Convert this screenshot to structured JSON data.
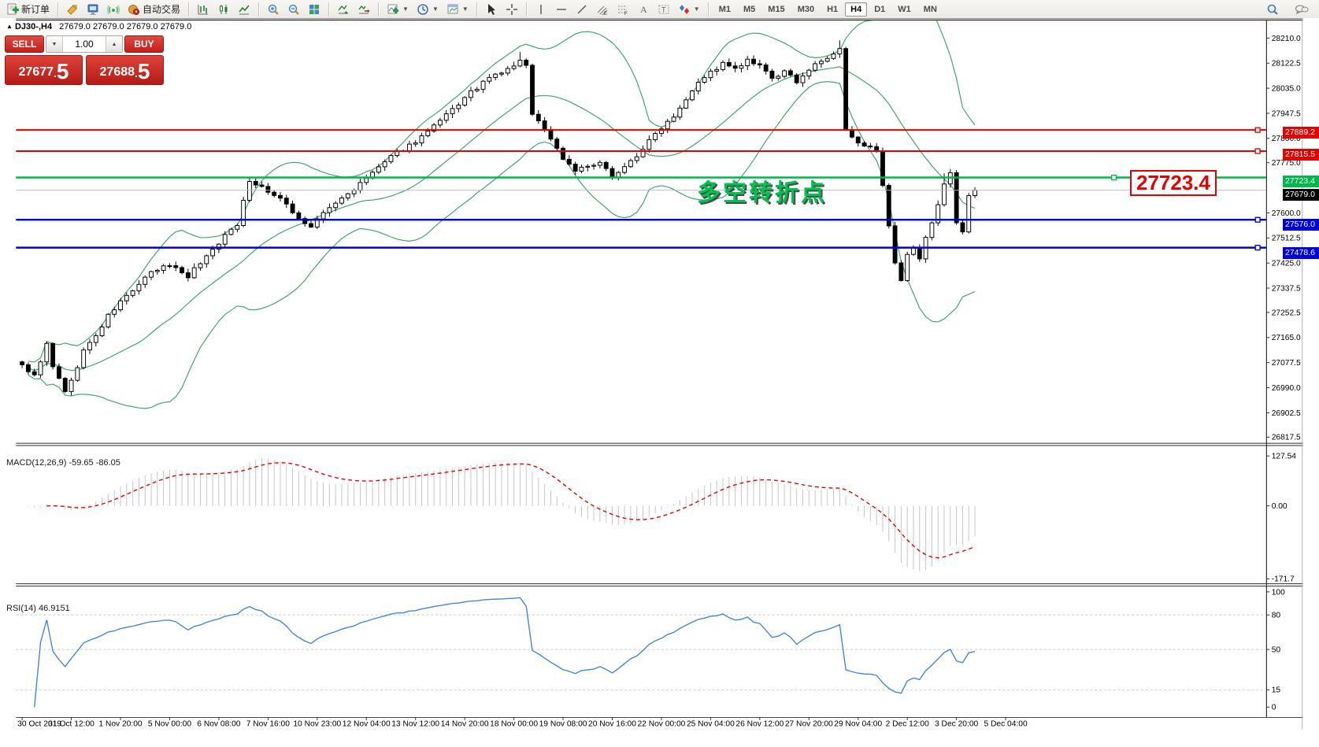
{
  "toolbar": {
    "new_order_label": "新订单",
    "autotrade_label": "自动交易",
    "timeframes": [
      "M1",
      "M5",
      "M15",
      "M30",
      "H1",
      "H4",
      "D1",
      "W1",
      "MN"
    ],
    "active_timeframe": "H4"
  },
  "chart": {
    "title_symbol": "DJ30-,H4",
    "title_quotes": "27679.0 27679.0 27679.0 27679.0",
    "annotation": "多空转折点",
    "price_tag": "27723.4"
  },
  "trade_panel": {
    "sell_label": "SELL",
    "buy_label": "BUY",
    "volume": "1.00",
    "sell_price": "27677.5",
    "buy_price": "27688.5"
  },
  "levels": [
    {
      "price": 27889.2,
      "label": "27889.2",
      "color": "#e60000",
      "width": 2
    },
    {
      "price": 27815.5,
      "label": "27815.5",
      "color": "#e60000",
      "width": 2
    },
    {
      "price": 27723.4,
      "label": "27723.4",
      "color": "#00b84a",
      "width": 2.5
    },
    {
      "price": 27576.0,
      "label": "27576.0",
      "color": "#0000dd",
      "width": 2.5
    },
    {
      "price": 27478.6,
      "label": "27478.6",
      "color": "#0000dd",
      "width": 2.5
    }
  ],
  "current_price": {
    "price": 27679.0,
    "label": "27679.0",
    "line_color": "#b8b8b8",
    "tag_bg": "#000000"
  },
  "price_axis": {
    "ticks": [
      "28210.0",
      "28122.5",
      "28035.0",
      "27947.5",
      "27860.0",
      "27775.0",
      "27600.0",
      "27512.5",
      "27425.0",
      "27337.5",
      "27252.5",
      "27165.0",
      "27077.5",
      "26990.0",
      "26902.5",
      "26817.5"
    ]
  },
  "macd": {
    "label": "MACD(12,26,9) -59.65 -86.05",
    "fast": 12,
    "slow": 26,
    "signal": 9,
    "current_macd": "-59.65",
    "current_signal": "-86.05",
    "axis": [
      "127.54",
      "0.00",
      "-171.7"
    ],
    "histogram_color": "#c4c4c4",
    "signal_color": "#e00000"
  },
  "rsi": {
    "label": "RSI(14) 46.9151",
    "period": 14,
    "current": "46.9151",
    "axis": [
      "100",
      "80",
      "50",
      "15",
      "0"
    ],
    "level_lines": [
      80,
      50,
      15
    ],
    "line_color": "#4285d6"
  },
  "time_axis": {
    "labels": [
      "30 Oct 2019",
      "31 Oct 12:00",
      "1 Nov 20:00",
      "5 Nov 00:00",
      "6 Nov 08:00",
      "7 Nov 16:00",
      "10 Nov 23:00",
      "12 Nov 04:00",
      "13 Nov 12:00",
      "14 Nov 20:00",
      "18 Nov 00:00",
      "19 Nov 08:00",
      "20 Nov 16:00",
      "22 Nov 00:00",
      "25 Nov 04:00",
      "26 Nov 12:00",
      "27 Nov 20:00",
      "29 Nov 04:00",
      "2 Dec 12:00",
      "3 Dec 20:00",
      "5 Dec 04:00"
    ]
  },
  "chart_data": {
    "type": "candlestick",
    "symbol": "DJ30-",
    "timeframe": "H4",
    "bars": 156,
    "jitter": 7,
    "bollinger": {
      "period": 20,
      "deviation": 2,
      "color": "#3da56b"
    },
    "close_waypoints": [
      [
        0,
        27070
      ],
      [
        2,
        27030
      ],
      [
        4,
        27140
      ],
      [
        5,
        27060
      ],
      [
        7,
        26980
      ],
      [
        8,
        27010
      ],
      [
        10,
        27120
      ],
      [
        12,
        27170
      ],
      [
        14,
        27240
      ],
      [
        16,
        27290
      ],
      [
        18,
        27330
      ],
      [
        21,
        27390
      ],
      [
        24,
        27420
      ],
      [
        27,
        27380
      ],
      [
        30,
        27450
      ],
      [
        33,
        27520
      ],
      [
        35,
        27560
      ],
      [
        36,
        27650
      ],
      [
        37,
        27710
      ],
      [
        39,
        27690
      ],
      [
        41,
        27660
      ],
      [
        43,
        27630
      ],
      [
        45,
        27580
      ],
      [
        47,
        27550
      ],
      [
        49,
        27600
      ],
      [
        52,
        27650
      ],
      [
        55,
        27700
      ],
      [
        58,
        27760
      ],
      [
        61,
        27810
      ],
      [
        64,
        27850
      ],
      [
        67,
        27900
      ],
      [
        70,
        27960
      ],
      [
        73,
        28020
      ],
      [
        76,
        28070
      ],
      [
        79,
        28100
      ],
      [
        81,
        28130
      ],
      [
        82,
        28110
      ],
      [
        83,
        27950
      ],
      [
        84,
        27920
      ],
      [
        86,
        27860
      ],
      [
        88,
        27790
      ],
      [
        90,
        27750
      ],
      [
        92,
        27760
      ],
      [
        94,
        27770
      ],
      [
        96,
        27730
      ],
      [
        98,
        27760
      ],
      [
        100,
        27800
      ],
      [
        102,
        27850
      ],
      [
        104,
        27900
      ],
      [
        106,
        27940
      ],
      [
        108,
        28000
      ],
      [
        110,
        28060
      ],
      [
        112,
        28090
      ],
      [
        114,
        28120
      ],
      [
        116,
        28100
      ],
      [
        118,
        28130
      ],
      [
        120,
        28110
      ],
      [
        122,
        28070
      ],
      [
        124,
        28090
      ],
      [
        126,
        28060
      ],
      [
        128,
        28100
      ],
      [
        130,
        28130
      ],
      [
        132,
        28150
      ],
      [
        133,
        28170
      ],
      [
        134,
        27890
      ],
      [
        135,
        27860
      ],
      [
        137,
        27840
      ],
      [
        139,
        27810
      ],
      [
        140,
        27690
      ],
      [
        141,
        27550
      ],
      [
        142,
        27420
      ],
      [
        143,
        27360
      ],
      [
        144,
        27450
      ],
      [
        145,
        27480
      ],
      [
        146,
        27440
      ],
      [
        147,
        27510
      ],
      [
        148,
        27570
      ],
      [
        149,
        27630
      ],
      [
        150,
        27700
      ],
      [
        151,
        27740
      ],
      [
        152,
        27560
      ],
      [
        153,
        27540
      ],
      [
        154,
        27660
      ],
      [
        155,
        27679
      ]
    ],
    "extra_low_wicks": {
      "5": 50,
      "6": 60,
      "7": 45,
      "142": 25,
      "143": 35
    },
    "extra_high_wicks": {
      "81": 20,
      "133": 15,
      "150": 28
    }
  }
}
